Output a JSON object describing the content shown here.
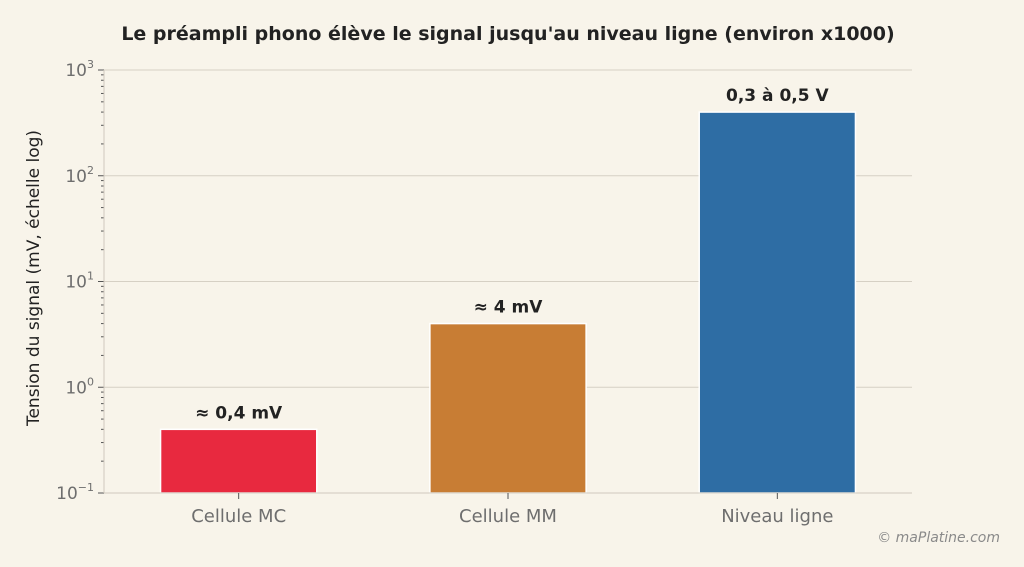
{
  "chart_data": {
    "type": "bar",
    "title": "Le préampli phono élève le signal jusqu'au niveau ligne (environ x1000)",
    "ylabel": "Tension du signal (mV, échelle log)",
    "xlabel": "",
    "yscale": "log",
    "ylim": [
      0.1,
      1000
    ],
    "yticks": [
      {
        "base": "10",
        "exp": "−1",
        "value": 0.1
      },
      {
        "base": "10",
        "exp": "0",
        "value": 1
      },
      {
        "base": "10",
        "exp": "1",
        "value": 10
      },
      {
        "base": "10",
        "exp": "2",
        "value": 100
      },
      {
        "base": "10",
        "exp": "3",
        "value": 1000
      }
    ],
    "grid": "horizontal",
    "categories": [
      "Cellule MC",
      "Cellule MM",
      "Niveau ligne"
    ],
    "values": [
      0.4,
      4,
      400
    ],
    "data_labels": [
      "≈ 0,4 mV",
      "≈ 4 mV",
      "0,3 à 0,5 V"
    ],
    "colors": [
      "#e8293f",
      "#c87d34",
      "#2e6da4"
    ]
  },
  "credit": "© maPlatine.com"
}
